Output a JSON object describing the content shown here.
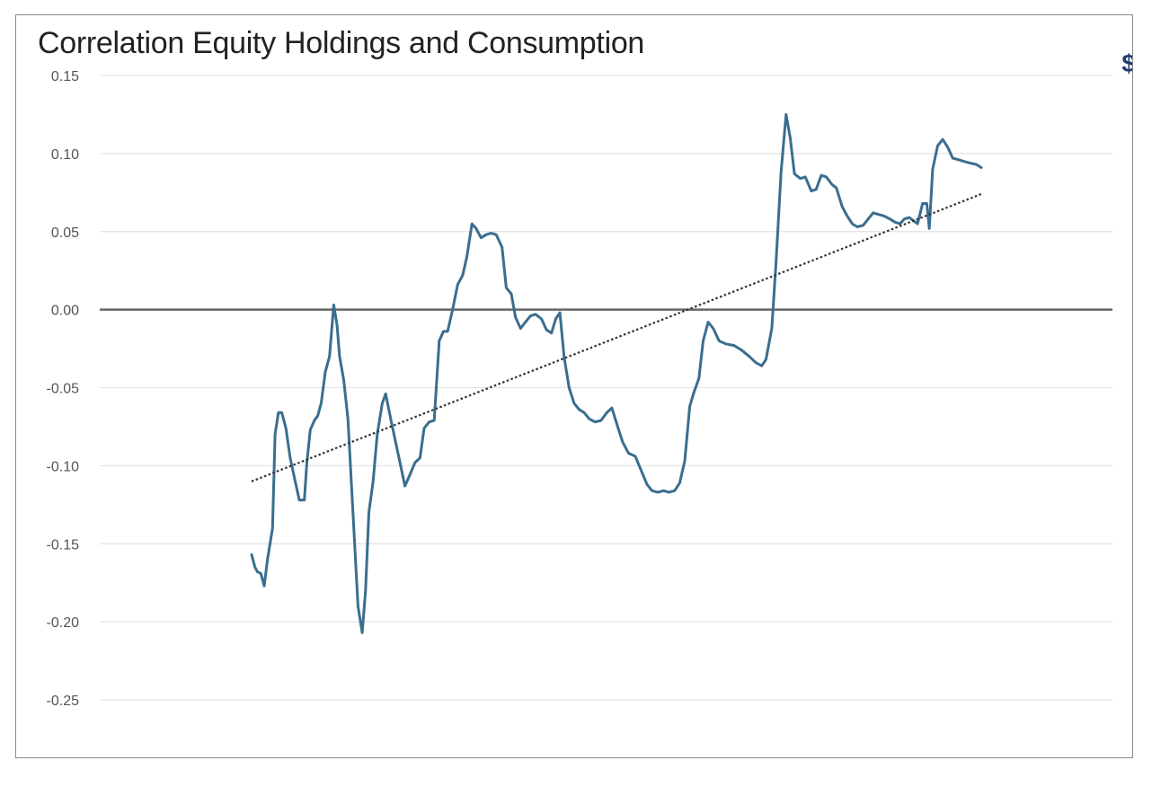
{
  "chart_data": {
    "type": "line",
    "title": "Correlation Equity Holdings and Consumption",
    "xlabel": "",
    "ylabel": "",
    "ylim": [
      -0.25,
      0.15
    ],
    "yticks": [
      {
        "value": 0.15,
        "label": "0.15"
      },
      {
        "value": 0.1,
        "label": "0.10"
      },
      {
        "value": 0.05,
        "label": "0.05"
      },
      {
        "value": 0.0,
        "label": "0.00"
      },
      {
        "value": -0.05,
        "label": "-0.05"
      },
      {
        "value": -0.1,
        "label": "-0.10"
      },
      {
        "value": -0.15,
        "label": "-0.15"
      },
      {
        "value": -0.2,
        "label": "-0.20"
      },
      {
        "value": -0.25,
        "label": "-0.25"
      }
    ],
    "grid": true,
    "zero_line": true,
    "legend": "none",
    "x_axis_labels_shown": false,
    "xlim": [
      0,
      100
    ],
    "colors": {
      "series": "#3a6e8f",
      "grid": "#e3e3e3",
      "zero_line": "#666666",
      "trend": "#333333"
    },
    "series": [
      {
        "style": "solid",
        "points": [
          [
            0.0,
            -0.157
          ],
          [
            0.4,
            -0.165
          ],
          [
            0.7,
            -0.168
          ],
          [
            1.1,
            -0.169
          ],
          [
            1.5,
            -0.177
          ],
          [
            1.9,
            -0.16
          ],
          [
            2.5,
            -0.14
          ],
          [
            2.8,
            -0.08
          ],
          [
            3.2,
            -0.066
          ],
          [
            3.6,
            -0.066
          ],
          [
            4.1,
            -0.076
          ],
          [
            4.6,
            -0.095
          ],
          [
            5.2,
            -0.11
          ],
          [
            5.7,
            -0.122
          ],
          [
            6.3,
            -0.122
          ],
          [
            6.6,
            -0.098
          ],
          [
            7.0,
            -0.077
          ],
          [
            7.5,
            -0.071
          ],
          [
            7.9,
            -0.068
          ],
          [
            8.3,
            -0.06
          ],
          [
            8.8,
            -0.04
          ],
          [
            9.3,
            -0.03
          ],
          [
            9.8,
            0.003
          ],
          [
            10.2,
            -0.01
          ],
          [
            10.5,
            -0.03
          ],
          [
            11.0,
            -0.045
          ],
          [
            11.5,
            -0.07
          ],
          [
            12.1,
            -0.13
          ],
          [
            12.7,
            -0.19
          ],
          [
            13.2,
            -0.207
          ],
          [
            13.6,
            -0.18
          ],
          [
            14.0,
            -0.13
          ],
          [
            14.5,
            -0.11
          ],
          [
            15.0,
            -0.08
          ],
          [
            15.6,
            -0.06
          ],
          [
            16.0,
            -0.054
          ],
          [
            16.6,
            -0.07
          ],
          [
            17.2,
            -0.085
          ],
          [
            17.8,
            -0.1
          ],
          [
            18.3,
            -0.113
          ],
          [
            18.8,
            -0.107
          ],
          [
            19.5,
            -0.098
          ],
          [
            20.1,
            -0.095
          ],
          [
            20.6,
            -0.076
          ],
          [
            21.2,
            -0.072
          ],
          [
            21.8,
            -0.071
          ],
          [
            22.4,
            -0.02
          ],
          [
            22.9,
            -0.014
          ],
          [
            23.4,
            -0.014
          ],
          [
            24.0,
            0.0
          ],
          [
            24.6,
            0.016
          ],
          [
            25.2,
            0.022
          ],
          [
            25.7,
            0.034
          ],
          [
            26.3,
            0.055
          ],
          [
            26.8,
            0.052
          ],
          [
            27.4,
            0.046
          ],
          [
            28.0,
            0.048
          ],
          [
            28.6,
            0.049
          ],
          [
            29.2,
            0.048
          ],
          [
            29.9,
            0.04
          ],
          [
            30.4,
            0.014
          ],
          [
            31.0,
            0.01
          ],
          [
            31.5,
            -0.005
          ],
          [
            32.1,
            -0.012
          ],
          [
            32.7,
            -0.008
          ],
          [
            33.3,
            -0.004
          ],
          [
            33.9,
            -0.003
          ],
          [
            34.6,
            -0.006
          ],
          [
            35.2,
            -0.013
          ],
          [
            35.8,
            -0.015
          ],
          [
            36.3,
            -0.006
          ],
          [
            36.8,
            -0.002
          ],
          [
            37.3,
            -0.03
          ],
          [
            37.9,
            -0.05
          ],
          [
            38.5,
            -0.06
          ],
          [
            39.1,
            -0.064
          ],
          [
            39.7,
            -0.066
          ],
          [
            40.3,
            -0.07
          ],
          [
            41.0,
            -0.072
          ],
          [
            41.7,
            -0.071
          ],
          [
            42.4,
            -0.066
          ],
          [
            43.0,
            -0.063
          ],
          [
            43.7,
            -0.075
          ],
          [
            44.3,
            -0.085
          ],
          [
            45.0,
            -0.092
          ],
          [
            45.8,
            -0.094
          ],
          [
            46.5,
            -0.103
          ],
          [
            47.2,
            -0.112
          ],
          [
            47.8,
            -0.116
          ],
          [
            48.5,
            -0.117
          ],
          [
            49.2,
            -0.116
          ],
          [
            49.8,
            -0.117
          ],
          [
            50.5,
            -0.116
          ],
          [
            51.1,
            -0.111
          ],
          [
            51.7,
            -0.097
          ],
          [
            52.3,
            -0.062
          ],
          [
            52.8,
            -0.053
          ],
          [
            53.4,
            -0.044
          ],
          [
            53.9,
            -0.02
          ],
          [
            54.5,
            -0.008
          ],
          [
            55.1,
            -0.012
          ],
          [
            55.8,
            -0.02
          ],
          [
            56.6,
            -0.022
          ],
          [
            57.6,
            -0.023
          ],
          [
            58.5,
            -0.026
          ],
          [
            59.4,
            -0.03
          ],
          [
            60.2,
            -0.034
          ],
          [
            60.9,
            -0.036
          ],
          [
            61.4,
            -0.032
          ],
          [
            62.1,
            -0.012
          ],
          [
            62.6,
            0.03
          ],
          [
            63.2,
            0.088
          ],
          [
            63.8,
            0.125
          ],
          [
            64.3,
            0.11
          ],
          [
            64.8,
            0.087
          ],
          [
            65.5,
            0.084
          ],
          [
            66.1,
            0.085
          ],
          [
            66.8,
            0.076
          ],
          [
            67.4,
            0.077
          ],
          [
            68.0,
            0.086
          ],
          [
            68.6,
            0.085
          ],
          [
            69.3,
            0.08
          ],
          [
            69.8,
            0.078
          ],
          [
            70.5,
            0.066
          ],
          [
            71.1,
            0.06
          ],
          [
            71.7,
            0.055
          ],
          [
            72.3,
            0.053
          ],
          [
            73.0,
            0.054
          ],
          [
            73.6,
            0.058
          ],
          [
            74.2,
            0.062
          ],
          [
            74.8,
            0.061
          ],
          [
            75.5,
            0.06
          ],
          [
            76.2,
            0.058
          ],
          [
            76.8,
            0.056
          ],
          [
            77.4,
            0.055
          ],
          [
            77.9,
            0.058
          ],
          [
            78.5,
            0.059
          ],
          [
            79.0,
            0.057
          ],
          [
            79.5,
            0.055
          ],
          [
            80.1,
            0.068
          ],
          [
            80.6,
            0.068
          ],
          [
            80.9,
            0.052
          ],
          [
            81.3,
            0.09
          ],
          [
            81.9,
            0.105
          ],
          [
            82.5,
            0.109
          ],
          [
            83.1,
            0.104
          ],
          [
            83.7,
            0.097
          ],
          [
            84.4,
            0.096
          ],
          [
            85.0,
            0.095
          ],
          [
            85.7,
            0.094
          ],
          [
            86.5,
            0.093
          ],
          [
            87.1,
            0.091
          ]
        ]
      },
      {
        "style": "dotted",
        "points": [
          [
            0.0,
            -0.11
          ],
          [
            87.1,
            0.074
          ]
        ]
      }
    ]
  },
  "misc": {
    "corner_glyph": "$"
  }
}
